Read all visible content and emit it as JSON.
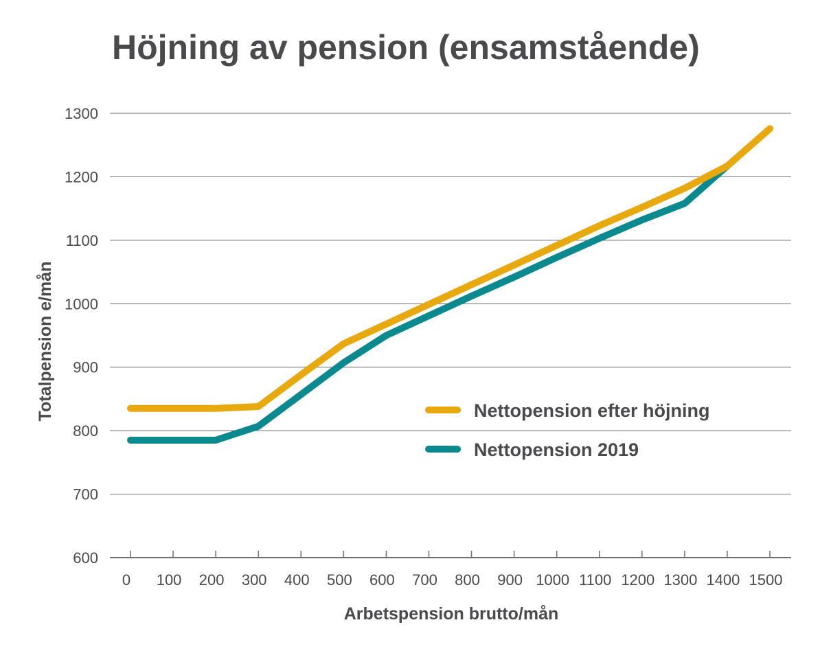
{
  "chart_data": {
    "type": "line",
    "title": "Höjning av pension (ensamstående)",
    "xlabel": "Arbetspension brutto/mån",
    "ylabel": "Totalpension e/mån",
    "x": [
      0,
      100,
      200,
      300,
      400,
      500,
      600,
      700,
      800,
      900,
      1000,
      1100,
      1200,
      1300,
      1400,
      1500
    ],
    "xlim": [
      0,
      1500
    ],
    "ylim": [
      600,
      1300
    ],
    "xticks": [
      "0",
      "100",
      "200",
      "300",
      "400",
      "500",
      "600",
      "700",
      "800",
      "900",
      "1000",
      "1100",
      "1200",
      "1300",
      "1400",
      "1500"
    ],
    "yticks": [
      "600",
      "700",
      "800",
      "900",
      "1000",
      "1100",
      "1200",
      "1300"
    ],
    "grid": "horizontal",
    "legend_position": "center-right",
    "series": [
      {
        "name": "Nettopension efter höjning",
        "color": "#e8a90e",
        "x": [
          0,
          200,
          300,
          400,
          500,
          600,
          700,
          800,
          900,
          1000,
          1100,
          1200,
          1300,
          1400,
          1500
        ],
        "values": [
          835,
          835,
          838,
          888,
          937,
          968,
          999,
          1030,
          1061,
          1092,
          1123,
          1152,
          1182,
          1217,
          1276
        ]
      },
      {
        "name": "Nettopension 2019",
        "color": "#0a8a8e",
        "x": [
          0,
          200,
          300,
          400,
          500,
          600,
          700,
          800,
          900,
          1000,
          1100,
          1200,
          1300,
          1400
        ],
        "values": [
          785,
          785,
          807,
          857,
          907,
          950,
          981,
          1012,
          1042,
          1073,
          1103,
          1132,
          1158,
          1217
        ]
      }
    ]
  }
}
